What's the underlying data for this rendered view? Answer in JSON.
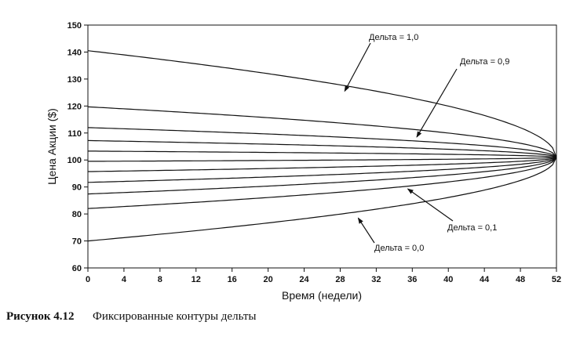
{
  "chart_data": {
    "type": "line",
    "xlabel": "Время (недели)",
    "ylabel": "Цена Акции ($)",
    "xlim": [
      0,
      52
    ],
    "ylim": [
      60,
      150
    ],
    "xticks": [
      0,
      4,
      8,
      12,
      16,
      20,
      24,
      28,
      32,
      36,
      40,
      44,
      48,
      52
    ],
    "yticks": [
      60,
      70,
      80,
      90,
      100,
      110,
      120,
      130,
      140,
      150
    ],
    "grid": false,
    "legend": "none",
    "convergence_point": {
      "x": 52,
      "y": 101
    },
    "series": [
      {
        "start": [
          0,
          140.5
        ]
      },
      {
        "start": [
          0,
          119.7
        ]
      },
      {
        "start": [
          0,
          112.0
        ]
      },
      {
        "start": [
          0,
          107.2
        ]
      },
      {
        "start": [
          0,
          103.3
        ]
      },
      {
        "start": [
          0,
          99.5
        ]
      },
      {
        "start": [
          0,
          95.7
        ]
      },
      {
        "start": [
          0,
          91.7
        ]
      },
      {
        "start": [
          0,
          87.4
        ]
      },
      {
        "start": [
          0,
          82.0
        ]
      },
      {
        "start": [
          0,
          70.0
        ]
      }
    ],
    "annotations": [
      {
        "text": "Дельта = 1,0",
        "target": [
          28.5,
          125.5
        ]
      },
      {
        "text": "Дельта = 0,9",
        "target": [
          36.5,
          108.5
        ]
      },
      {
        "text": "Дельта = 0,1",
        "target": [
          35.5,
          89.3
        ]
      },
      {
        "text": "Дельта = 0,0",
        "target": [
          30,
          78.5
        ]
      }
    ]
  },
  "caption": {
    "number": "Рисунок 4.12",
    "text": "Фиксированные контуры дельты"
  }
}
